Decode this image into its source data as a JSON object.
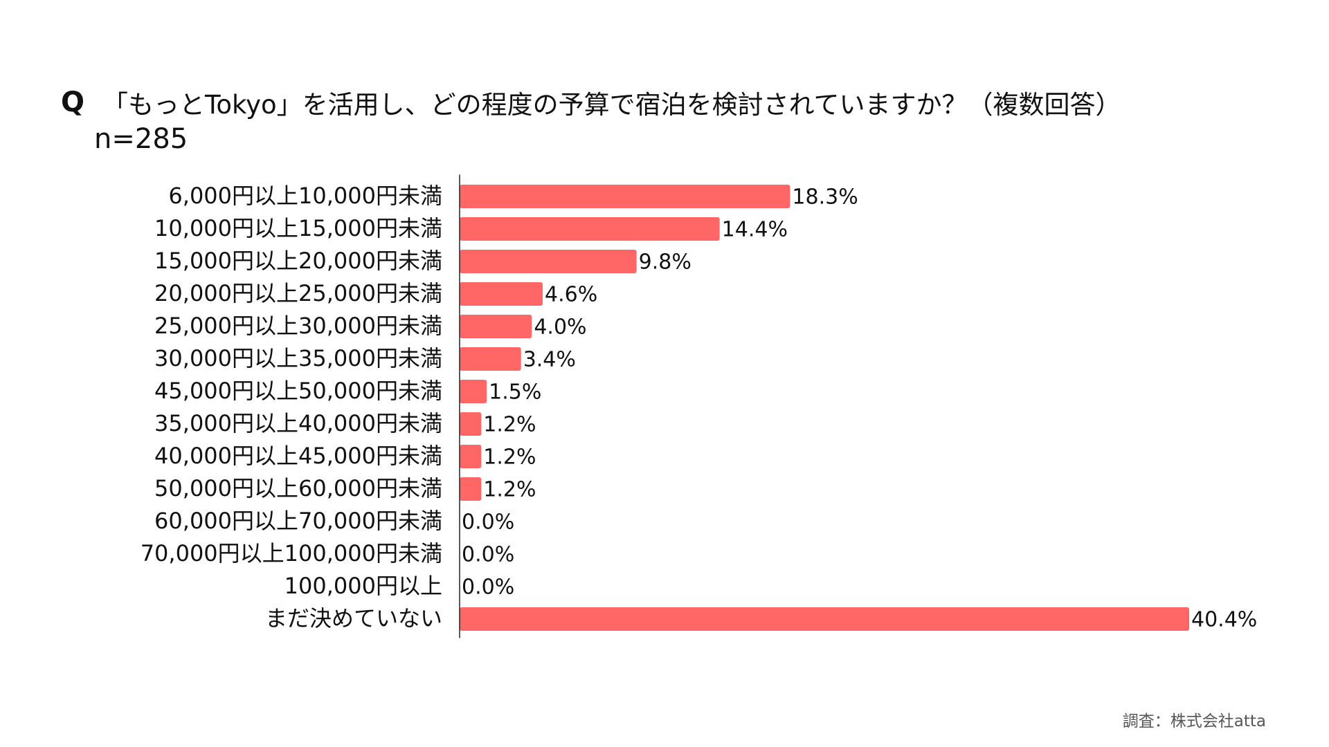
{
  "header": {
    "q_mark": "Q",
    "title": "「もっとTokyo」を活用し、どの程度の予算で宿泊を検討されていますか？（複数回答）",
    "sample_size": "n=285"
  },
  "source": "調査：株式会社atta",
  "colors": {
    "bar": "#ff6666",
    "axis": "#222222"
  },
  "chart_data": {
    "type": "bar",
    "orientation": "horizontal",
    "title": "「もっとTokyo」を活用し、どの程度の予算で宿泊を検討されていますか？（複数回答）",
    "categories": [
      "6,000円以上10,000円未満",
      "10,000円以上15,000円未満",
      "15,000円以上20,000円未満",
      "20,000円以上25,000円未満",
      "25,000円以上30,000円未満",
      "30,000円以上35,000円未満",
      "45,000円以上50,000円未満",
      "35,000円以上40,000円未満",
      "40,000円以上45,000円未満",
      "50,000円以上60,000円未満",
      "60,000円以上70,000円未満",
      "70,000円以上100,000円未満",
      "100,000円以上",
      "まだ決めていない"
    ],
    "values": [
      18.3,
      14.4,
      9.8,
      4.6,
      4.0,
      3.4,
      1.5,
      1.2,
      1.2,
      1.2,
      0.0,
      0.0,
      0.0,
      40.4
    ],
    "value_labels": [
      "18.3%",
      "14.4%",
      "9.8%",
      "4.6%",
      "4.0%",
      "3.4%",
      "1.5%",
      "1.2%",
      "1.2%",
      "1.2%",
      "0.0%",
      "0.0%",
      "0.0%",
      "40.4%"
    ],
    "unit": "%",
    "xlim": [
      0,
      40.4
    ],
    "grid": false,
    "legend": "none"
  }
}
